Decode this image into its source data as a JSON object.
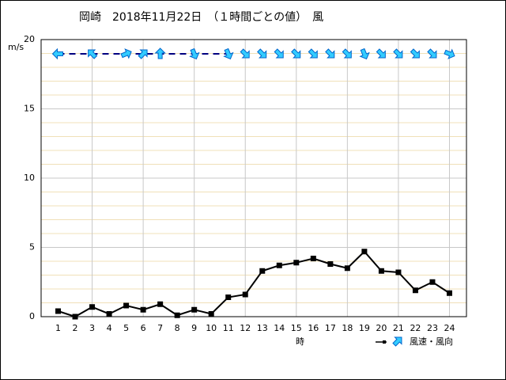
{
  "chart_data": {
    "type": "line",
    "title": "岡崎　2018年11月22日　（１時間ごとの値）　風",
    "y_label": "m/s",
    "x_label": "時",
    "legend_label": "風速・風向",
    "x": [
      1,
      2,
      3,
      4,
      5,
      6,
      7,
      8,
      9,
      10,
      11,
      12,
      13,
      14,
      15,
      16,
      17,
      18,
      19,
      20,
      21,
      22,
      23,
      24
    ],
    "xlim": [
      0,
      25
    ],
    "xgrid": [
      3,
      6,
      9,
      12,
      15,
      18,
      21,
      24
    ],
    "ylim": [
      0,
      20
    ],
    "yticks": [
      0,
      5,
      10,
      15,
      20
    ],
    "yminor": [
      1,
      2,
      3,
      4,
      6,
      7,
      8,
      9,
      11,
      12,
      13,
      14,
      16,
      17,
      18,
      19
    ],
    "series": [
      {
        "name": "風速",
        "color": "#000000",
        "values": [
          0.4,
          0.0,
          0.7,
          0.2,
          0.8,
          0.5,
          0.9,
          0.1,
          0.5,
          0.2,
          1.4,
          1.6,
          3.3,
          3.7,
          3.9,
          4.2,
          3.8,
          3.5,
          4.7,
          3.3,
          3.2,
          1.9,
          2.5,
          1.7
        ]
      }
    ],
    "direction_from_deg": [
      90,
      null,
      135,
      null,
      247.5,
      225,
      180,
      null,
      337.5,
      null,
      337.5,
      315,
      315,
      315,
      315,
      315,
      315,
      315,
      337.5,
      315,
      315,
      315,
      315,
      292.5
    ],
    "arrow_color": "#33ccff",
    "grid": true
  }
}
